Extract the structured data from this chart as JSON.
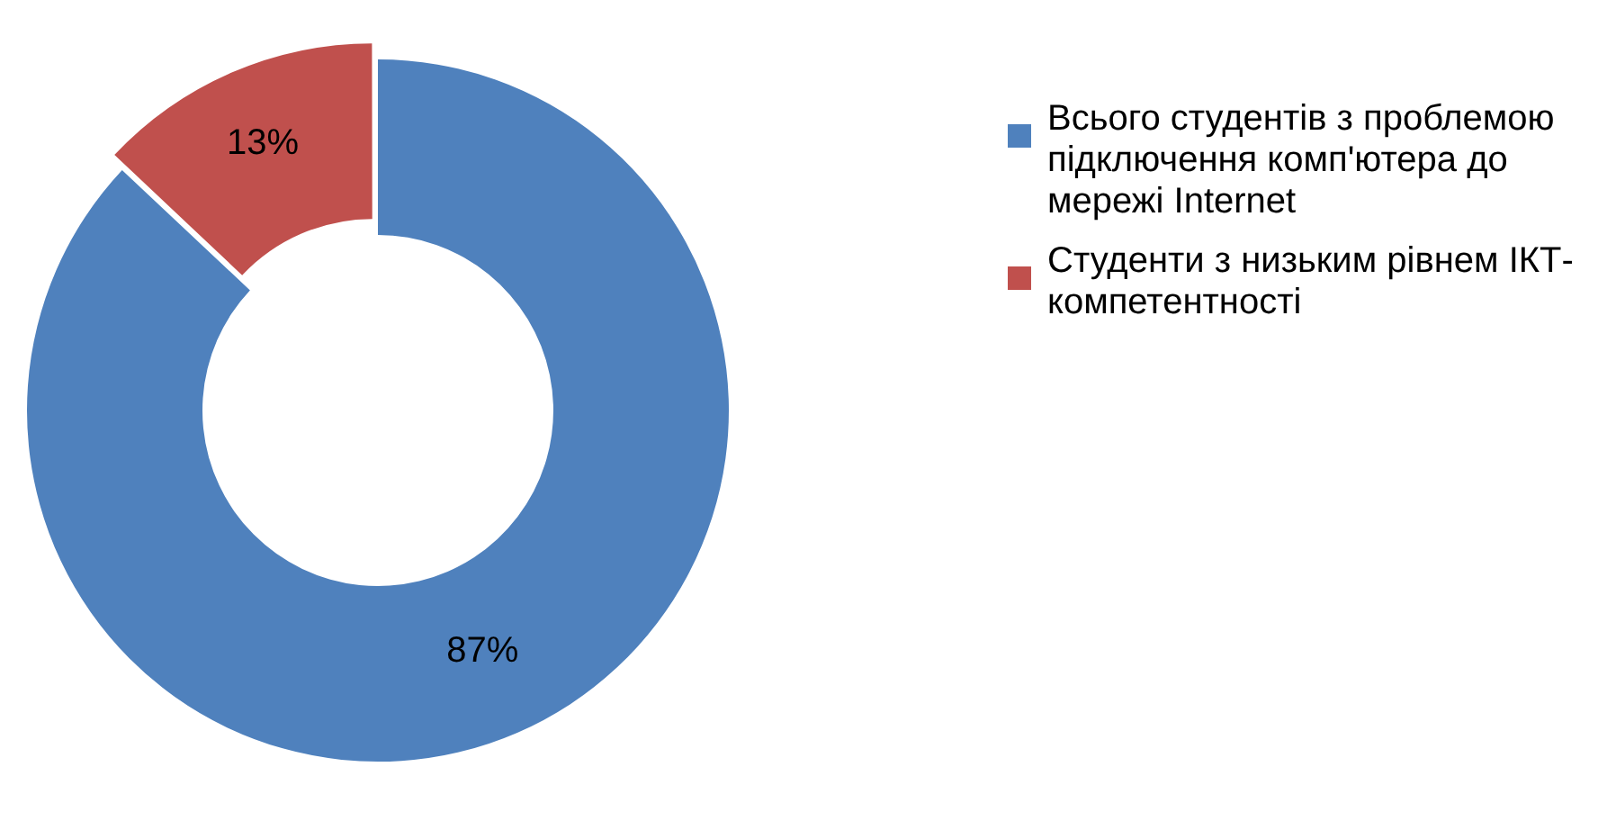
{
  "chart_data": {
    "type": "donut",
    "categories": [
      "Всього студентів з проблемою підключення комп'ютера до мережі Internet",
      "Студенти з низьким рівнем ІКТ-компетентності"
    ],
    "values": [
      87,
      13
    ],
    "colors": [
      "#4f81bd",
      "#c0504d"
    ],
    "value_labels": [
      "87%",
      "13%"
    ],
    "legend": "right"
  }
}
